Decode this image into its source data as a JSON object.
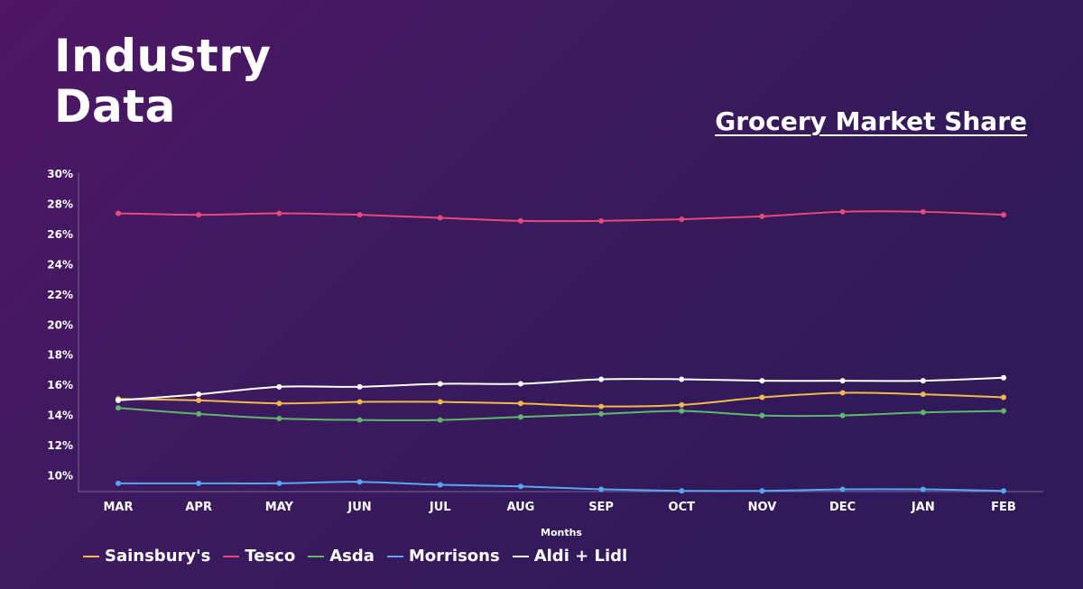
{
  "page": {
    "title_line1": "Industry",
    "title_line2": "Data"
  },
  "chart_data": {
    "type": "line",
    "title": "Grocery Market Share",
    "xlabel": "Months",
    "ylabel": "",
    "categories": [
      "MAR",
      "APR",
      "MAY",
      "JUN",
      "JUL",
      "AUG",
      "SEP",
      "OCT",
      "NOV",
      "DEC",
      "JAN",
      "FEB"
    ],
    "yticks": [
      "10%",
      "12%",
      "14%",
      "16%",
      "18%",
      "20%",
      "22%",
      "24%",
      "26%",
      "28%",
      "30%"
    ],
    "ylim": [
      9,
      30
    ],
    "grid": false,
    "legend_position": "bottom-left",
    "series": [
      {
        "name": "Sainsbury's",
        "color": "#f2b84b",
        "values": [
          15.1,
          15.0,
          14.8,
          14.9,
          14.9,
          14.8,
          14.6,
          14.7,
          15.2,
          15.5,
          15.4,
          15.2
        ]
      },
      {
        "name": "Tesco",
        "color": "#e8487a",
        "values": [
          27.4,
          27.3,
          27.4,
          27.3,
          27.1,
          26.9,
          26.9,
          27.0,
          27.2,
          27.5,
          27.5,
          27.3
        ]
      },
      {
        "name": "Asda",
        "color": "#5fb76a",
        "values": [
          14.5,
          14.1,
          13.8,
          13.7,
          13.7,
          13.9,
          14.1,
          14.3,
          14.0,
          14.0,
          14.2,
          14.3
        ]
      },
      {
        "name": "Morrisons",
        "color": "#56a8f5",
        "values": [
          9.5,
          9.5,
          9.5,
          9.6,
          9.4,
          9.3,
          9.1,
          9.0,
          9.0,
          9.1,
          9.1,
          9.0
        ]
      },
      {
        "name": "Aldi + Lidl",
        "color": "#ffffff",
        "values": [
          15.0,
          15.4,
          15.9,
          15.9,
          16.1,
          16.1,
          16.4,
          16.4,
          16.3,
          16.3,
          16.3,
          16.5
        ]
      }
    ]
  }
}
